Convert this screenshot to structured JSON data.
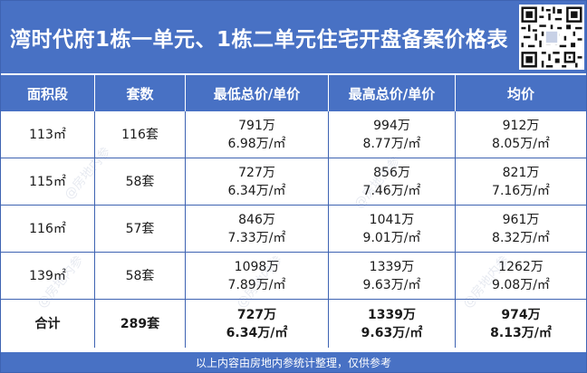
{
  "title": "湾时代府1栋一单元、1栋二单元住宅开盘备案价格表",
  "qr_code_icon": "qr-code-icon",
  "colors": {
    "header_bg": "#4871c4",
    "border": "#3e63b2",
    "text": "#1a1a1a"
  },
  "headers": [
    "面积段",
    "套数",
    "最低总价/单价",
    "最高总价/单价",
    "均价"
  ],
  "rows": [
    {
      "area": "113㎡",
      "units": "116套",
      "min_total": "791万",
      "min_unit": "6.98万/㎡",
      "max_total": "994万",
      "max_unit": "8.77万/㎡",
      "avg_total": "912万",
      "avg_unit": "8.05万/㎡"
    },
    {
      "area": "115㎡",
      "units": "58套",
      "min_total": "727万",
      "min_unit": "6.34万/㎡",
      "max_total": "856万",
      "max_unit": "7.46万/㎡",
      "avg_total": "821万",
      "avg_unit": "7.16万/㎡"
    },
    {
      "area": "116㎡",
      "units": "57套",
      "min_total": "846万",
      "min_unit": "7.33万/㎡",
      "max_total": "1041万",
      "max_unit": "9.01万/㎡",
      "avg_total": "961万",
      "avg_unit": "8.32万/㎡"
    },
    {
      "area": "139㎡",
      "units": "58套",
      "min_total": "1098万",
      "min_unit": "7.89万/㎡",
      "max_total": "1339万",
      "max_unit": "9.63万/㎡",
      "avg_total": "1262万",
      "avg_unit": "9.08万/㎡"
    }
  ],
  "total": {
    "label": "合计",
    "units": "289套",
    "min_total": "727万",
    "min_unit": "6.34万/㎡",
    "max_total": "1339万",
    "max_unit": "9.63万/㎡",
    "avg_total": "974万",
    "avg_unit": "8.13万/㎡"
  },
  "footer": "以上内容由房地内参统计整理，仅供参考",
  "watermark": "@房地内参"
}
